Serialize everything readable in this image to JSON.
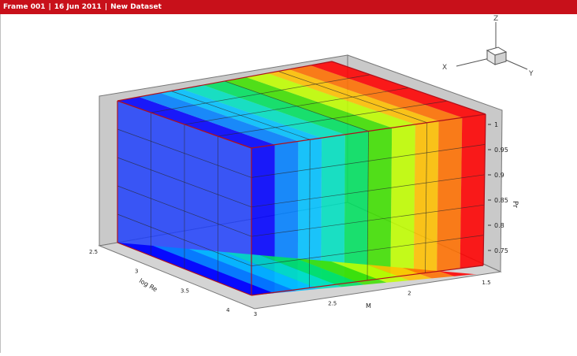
{
  "header": {
    "frame": "Frame 001",
    "date": "16 Jun 2011",
    "dataset": "New Dataset"
  },
  "colors": {
    "header_bg": "#c8101a",
    "wall_fill": "#c9c9c9",
    "grid_line": "#2a2a2a",
    "cube_edge": "#b0101a"
  },
  "chart_data": {
    "type": "surface3d",
    "title": "",
    "colormap": [
      "#0000ff",
      "#0080ff",
      "#00c0ff",
      "#00e0c0",
      "#00e060",
      "#40e000",
      "#c0ff00",
      "#ffc000",
      "#ff7000",
      "#ff0000"
    ],
    "axes": {
      "x": {
        "label": "M",
        "range": [
          3,
          1.5
        ],
        "ticks": [
          "3",
          "2.5",
          "2",
          "1.5"
        ]
      },
      "y": {
        "label": "log Re",
        "range": [
          2.5,
          4
        ],
        "ticks": [
          "2.5",
          "3",
          "3.5",
          "4"
        ]
      },
      "z": {
        "label": "Pr",
        "range": [
          0.75,
          1
        ],
        "ticks": [
          "1",
          "0.95",
          "0.9",
          "0.85",
          "0.8",
          "0.75"
        ]
      }
    },
    "orientation_axes": [
      "X",
      "Y",
      "Z"
    ],
    "grid": true
  }
}
